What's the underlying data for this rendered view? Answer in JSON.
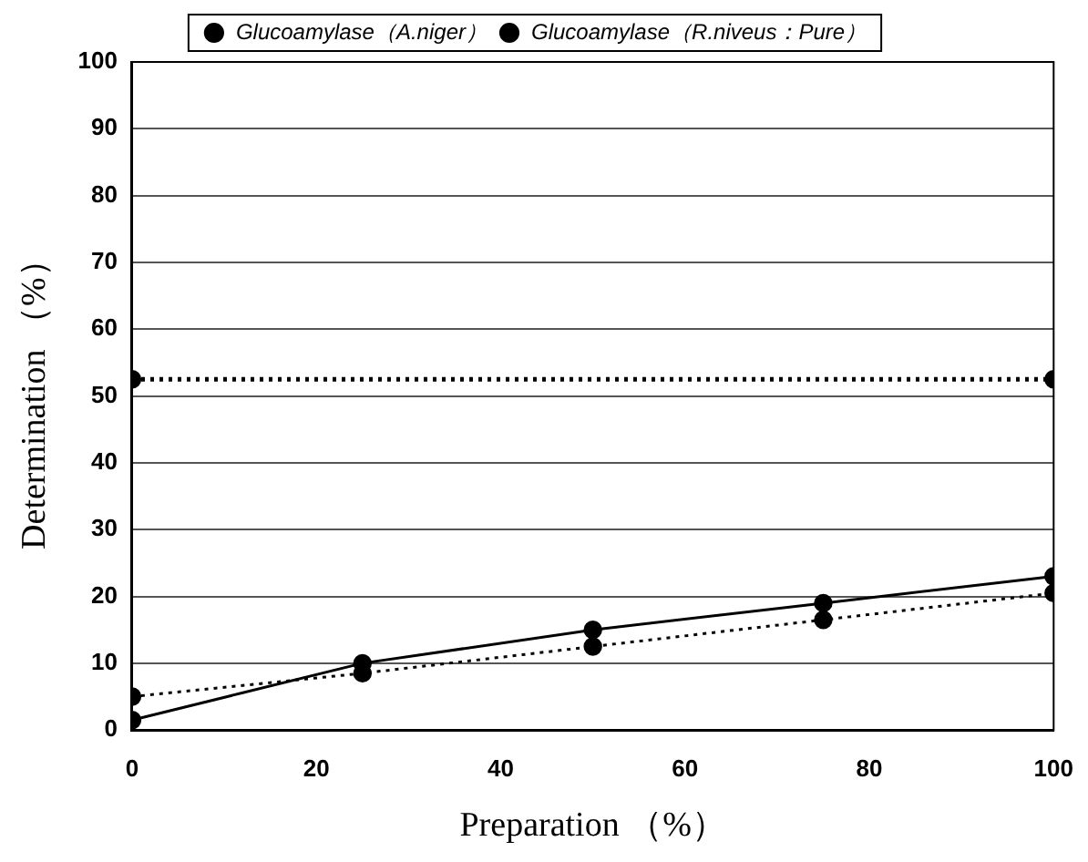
{
  "chart_data": {
    "type": "line",
    "xlabel": "Preparation （%）",
    "ylabel": "Determination （%）",
    "x": [
      0,
      25,
      50,
      75,
      100
    ],
    "series": [
      {
        "name": "Glucoamylase（A.niger）",
        "color": "#000000",
        "values": [
          1.5,
          10,
          15,
          19,
          23
        ],
        "line_style": "solid",
        "marker": "circle"
      },
      {
        "name": "Glucoamylase（R.niveus：Pure）",
        "color": "#000000",
        "values": [
          5,
          8.5,
          12.5,
          16.5,
          20.5
        ],
        "line_style": "dotted",
        "marker": "circle"
      },
      {
        "color": "#000000",
        "x": [
          0,
          100
        ],
        "values": [
          52.5,
          52.5
        ],
        "line_style": "dotted",
        "marker": "circle"
      }
    ],
    "xlim": [
      0,
      100
    ],
    "xticks": [
      0,
      20,
      40,
      60,
      80,
      100
    ],
    "ylim": [
      0,
      100
    ],
    "yticks": [
      0,
      10,
      20,
      30,
      40,
      50,
      60,
      70,
      80,
      90,
      100
    ],
    "grid": "y",
    "legend": "top"
  }
}
